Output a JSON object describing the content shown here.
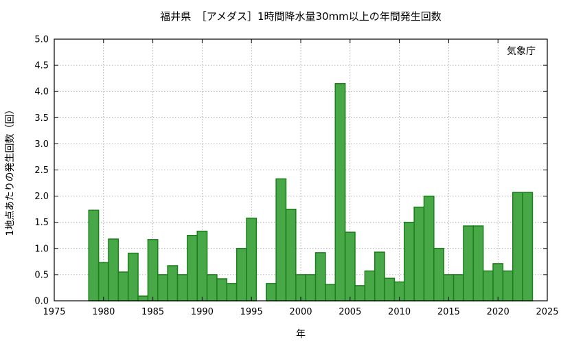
{
  "chart_data": {
    "type": "bar",
    "title": "福井県　［アメダス］1時間降水量30mm以上の年間発生回数",
    "xlabel": "年",
    "ylabel": "1地点あたりの発生回数（回）",
    "annotation": "気象庁",
    "xlim": [
      1975,
      2025
    ],
    "ylim": [
      0,
      5.0
    ],
    "x_ticks": [
      1975,
      1980,
      1985,
      1990,
      1995,
      2000,
      2005,
      2010,
      2015,
      2020,
      2025
    ],
    "y_ticks": [
      "0.0",
      "0.5",
      "1.0",
      "1.5",
      "2.0",
      "2.5",
      "3.0",
      "3.5",
      "4.0",
      "4.5",
      "5.0"
    ],
    "grid": true,
    "bar_color": "#48a848",
    "bar_edge_color": "#1b7d1b",
    "categories": [
      1979,
      1980,
      1981,
      1982,
      1983,
      1984,
      1985,
      1986,
      1987,
      1988,
      1989,
      1990,
      1991,
      1992,
      1993,
      1994,
      1995,
      1996,
      1997,
      1998,
      1999,
      2000,
      2001,
      2002,
      2003,
      2004,
      2005,
      2006,
      2007,
      2008,
      2009,
      2010,
      2011,
      2012,
      2013,
      2014,
      2015,
      2016,
      2017,
      2018,
      2019,
      2020,
      2021,
      2022,
      2023
    ],
    "values": [
      1.73,
      0.73,
      1.18,
      0.55,
      0.91,
      0.09,
      1.17,
      0.5,
      0.67,
      0.5,
      1.25,
      1.33,
      0.5,
      0.42,
      0.33,
      1.0,
      1.58,
      0,
      0.33,
      2.33,
      1.75,
      0.5,
      0.5,
      0.92,
      0.31,
      4.15,
      1.31,
      0.29,
      0.57,
      0.93,
      0.43,
      0.36,
      1.5,
      1.79,
      2.0,
      1.0,
      0.5,
      0.5,
      1.43,
      1.43,
      0.57,
      0.71,
      0.57,
      2.07,
      2.07
    ]
  }
}
